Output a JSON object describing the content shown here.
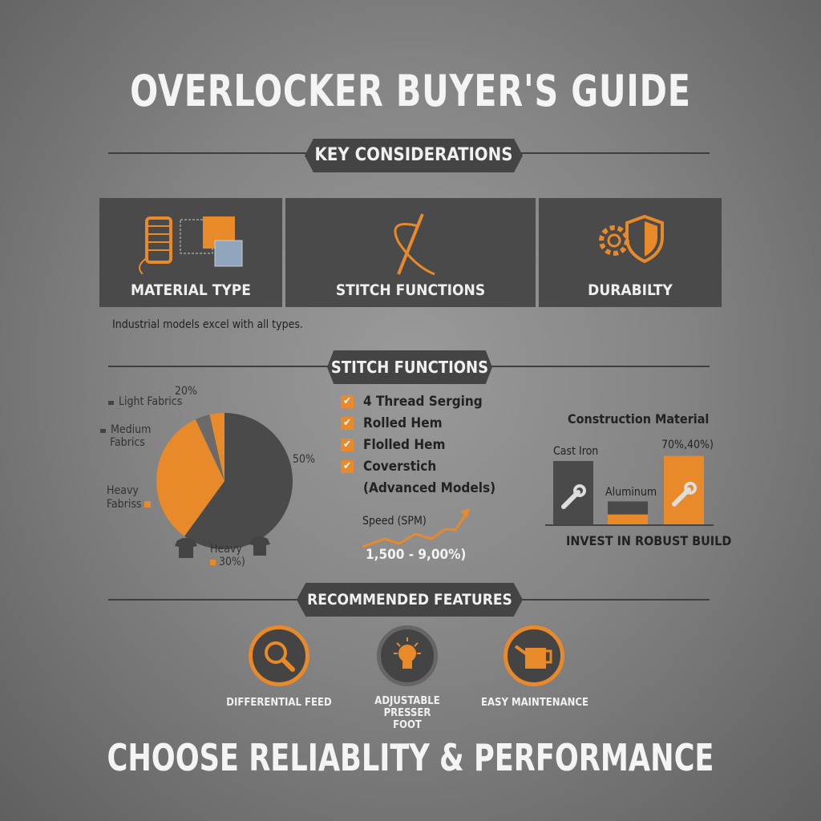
{
  "title": "OVERLOCKER BUYER'S GUIDE",
  "sections": {
    "key": "KEY CONSIDERATIONS",
    "stitch": "STITCH FUNCTIONS",
    "features": "RECOMMENDED FEATURES"
  },
  "cards": [
    {
      "label": "MATERIAL TYPE",
      "icon": "thread-spool-fabric-icon"
    },
    {
      "label": "STITCH FUNCTIONS",
      "icon": "needle-thread-icon"
    },
    {
      "label": "DURABILTY",
      "icon": "gear-shield-icon"
    }
  ],
  "note": "Industrial models excel with all types.",
  "pie": {
    "labels": {
      "light": "Light Fabrics",
      "medium1": "Medium",
      "medium2": "Fabrics",
      "heavy1": "Heavy",
      "heavy2": "Fabriss",
      "heavyb1": "Heavy",
      "heavyb2": "30%)",
      "p20": "20%",
      "p50": "50%"
    },
    "slices": [
      {
        "value": 60,
        "color": "#4a4a4a"
      },
      {
        "value": 33,
        "color": "#e8892a"
      },
      {
        "value": 3.5,
        "color": "#6a6a6a"
      },
      {
        "value": 3.5,
        "color": "#e8892a"
      }
    ]
  },
  "checklist": [
    "4 Thread Serging",
    "Rolled Hem",
    "Flolled Hem",
    "Coverstich"
  ],
  "checklist_sub": "(Advanced Models)",
  "speed": {
    "label": "Speed (SPM)",
    "range": "1,500 - 9,00%)"
  },
  "construction": {
    "title": "Construction Material",
    "cast": "Cast Iron",
    "alu": "Aluminum",
    "pct": "70%,40%)",
    "footer": "INVEST IN ROBUST BUILD",
    "bars": [
      {
        "value": 100,
        "color": "#4a4a4a"
      },
      {
        "value": 37,
        "color": "#4a4a4a",
        "fill": 0.45
      },
      {
        "value": 108,
        "color": "#e8892a"
      }
    ]
  },
  "features": [
    {
      "label": "DIFFERENTIAL FEED",
      "icon": "magnifier-icon"
    },
    {
      "label": "ADJUSTABLE PRESSER FOOT",
      "icon": "lightbulb-icon"
    },
    {
      "label": "EASY MAINTENANCE",
      "icon": "oil-can-icon"
    }
  ],
  "bottom": "CHOOSE RELIABLITY & PERFORMANCE",
  "colors": {
    "accent": "#e8892a",
    "dark": "#4a4a4a"
  }
}
